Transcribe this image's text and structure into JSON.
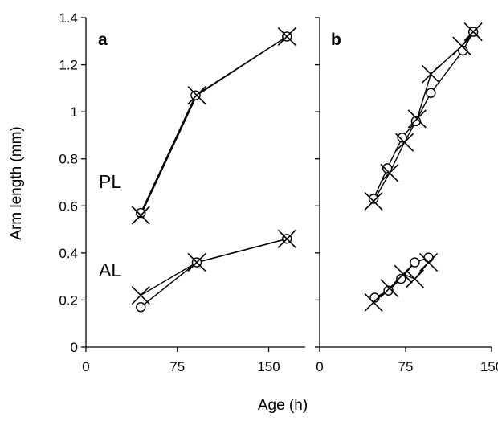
{
  "chart_data": [
    {
      "type": "line",
      "panel_label": "a",
      "xlim": [
        0,
        180
      ],
      "ylim": [
        0,
        1.4
      ],
      "x_ticks": [
        "0",
        "75",
        "150"
      ],
      "y_ticks": [
        "0",
        "0.2",
        "0.4",
        "0.6",
        "0.8",
        "1",
        "1.2",
        "1.4"
      ],
      "group_labels": [
        "PL",
        "AL"
      ],
      "series": [
        {
          "marker": "circle",
          "points": [
            [
              45,
              0.57
            ],
            [
              90,
              1.07
            ],
            [
              165,
              1.32
            ]
          ]
        },
        {
          "marker": "cross",
          "points": [
            [
              45,
              0.56
            ],
            [
              91,
              1.07
            ],
            [
              165,
              1.32
            ]
          ]
        },
        {
          "marker": "circle",
          "points": [
            [
              45,
              0.17
            ],
            [
              91,
              0.36
            ],
            [
              165,
              0.46
            ]
          ]
        },
        {
          "marker": "cross",
          "points": [
            [
              45,
              0.22
            ],
            [
              91,
              0.36
            ],
            [
              165,
              0.46
            ]
          ]
        }
      ]
    },
    {
      "type": "line",
      "panel_label": "b",
      "xlim": [
        0,
        150
      ],
      "ylim": [
        0,
        1.4
      ],
      "x_ticks": [
        "0",
        "75",
        "150"
      ],
      "series": [
        {
          "marker": "circle",
          "points": [
            [
              47,
              0.63
            ],
            [
              59,
              0.76
            ],
            [
              72,
              0.89
            ],
            [
              84,
              0.96
            ],
            [
              97,
              1.08
            ],
            [
              125,
              1.26
            ],
            [
              134,
              1.34
            ]
          ]
        },
        {
          "marker": "cross",
          "points": [
            [
              47,
              0.62
            ],
            [
              61,
              0.74
            ],
            [
              74,
              0.87
            ],
            [
              85,
              0.97
            ],
            [
              97,
              1.16
            ],
            [
              124,
              1.28
            ],
            [
              134,
              1.34
            ]
          ]
        },
        {
          "marker": "circle",
          "points": [
            [
              48,
              0.21
            ],
            [
              60,
              0.24
            ],
            [
              71,
              0.29
            ],
            [
              83,
              0.36
            ],
            [
              95,
              0.38
            ]
          ]
        },
        {
          "marker": "cross",
          "points": [
            [
              47,
              0.19
            ],
            [
              61,
              0.25
            ],
            [
              73,
              0.31
            ],
            [
              83,
              0.29
            ],
            [
              95,
              0.36
            ]
          ]
        }
      ]
    }
  ],
  "xlabel": "Age (h)",
  "ylabel": "Arm length (mm)"
}
